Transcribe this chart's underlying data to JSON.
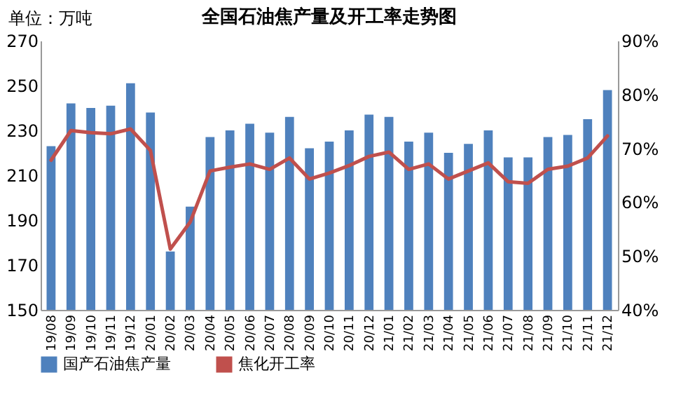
{
  "chart_data": {
    "type": "bar",
    "title": "全国石油焦产量及开工率走势图",
    "annotations": [
      "单位：万吨"
    ],
    "categories": [
      "19/08",
      "19/09",
      "19/10",
      "19/11",
      "19/12",
      "20/01",
      "20/02",
      "20/03",
      "20/04",
      "20/05",
      "20/06",
      "20/07",
      "20/08",
      "20/09",
      "20/10",
      "20/11",
      "20/12",
      "21/01",
      "21/02",
      "21/03",
      "21/04",
      "21/05",
      "21/06",
      "21/07",
      "21/08",
      "21/09",
      "21/10",
      "21/11",
      "21/12"
    ],
    "series": [
      {
        "name": "国产石油焦产量",
        "color": "#4f81bd",
        "values": [
          223,
          242,
          240,
          241,
          251,
          238,
          176,
          196,
          227,
          230,
          233,
          229,
          236,
          222,
          225,
          230,
          237,
          236,
          225,
          229,
          220,
          224,
          230,
          218,
          218,
          227,
          228,
          235,
          248
        ]
      },
      {
        "name": "焦化开工率",
        "type": "line",
        "axis": "y2",
        "color": "#c0504d",
        "values": [
          67.8,
          73.3,
          72.9,
          72.7,
          73.6,
          69.6,
          51.3,
          56.3,
          65.8,
          66.5,
          67.1,
          66.1,
          68.2,
          64.3,
          65.4,
          66.8,
          68.5,
          69.3,
          66.1,
          67.1,
          64.3,
          65.8,
          67.3,
          63.8,
          63.5,
          66.1,
          66.7,
          68.2,
          72.3
        ]
      }
    ],
    "ylim": [
      150,
      270
    ],
    "yticks": [
      150,
      170,
      190,
      210,
      230,
      250,
      270
    ],
    "y2lim": [
      40,
      90
    ],
    "y2ticks": [
      {
        "value": 40,
        "label": "40%"
      },
      {
        "value": 50,
        "label": "50%"
      },
      {
        "value": 60,
        "label": "60%"
      },
      {
        "value": 70,
        "label": "70%"
      },
      {
        "value": 80,
        "label": "80%"
      },
      {
        "value": 90,
        "label": "90%"
      }
    ],
    "legend": "bottom"
  }
}
